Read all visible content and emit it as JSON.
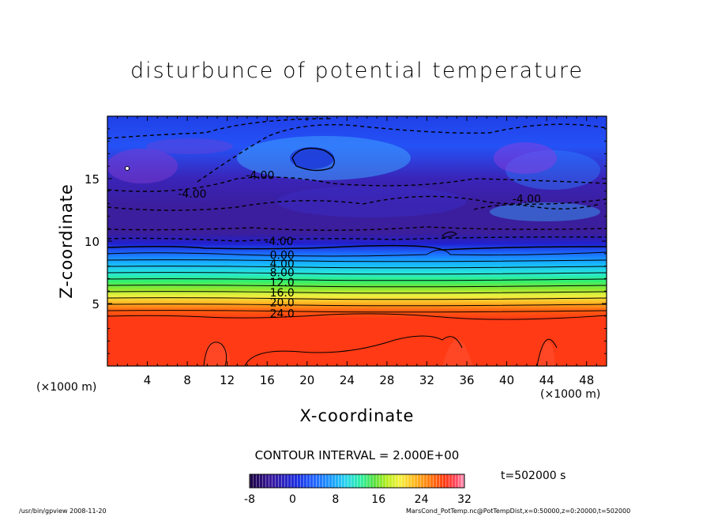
{
  "colors": {
    "background": "#ffffff",
    "ink": "#000000",
    "palette": [
      "#2b0060",
      "#3a1aa0",
      "#1e2fe0",
      "#2466ff",
      "#1c9cff",
      "#2ad6ee",
      "#30f0a0",
      "#58e040",
      "#b8ee20",
      "#f6f040",
      "#ffb820",
      "#ff7a10",
      "#ff3a14",
      "#ff4a60",
      "#ff8cb0"
    ]
  },
  "chart_data": {
    "type": "heatmap",
    "title": "disturbunce of potential temperature",
    "xlabel": "X-coordinate",
    "ylabel": "Z-coordinate",
    "x_unit": "(×1000 m)",
    "y_unit": "(×1000 m)",
    "xlim": [
      0,
      50
    ],
    "ylim": [
      0,
      20
    ],
    "x_ticks": [
      4,
      8,
      12,
      16,
      20,
      24,
      28,
      32,
      36,
      40,
      44,
      48
    ],
    "y_ticks": [
      5,
      10,
      15
    ],
    "contour_interval": "CONTOUR INTERVAL = 2.000E+00",
    "contour_labels": [
      {
        "text": "24.0",
        "x": 17.5,
        "z": 4.2
      },
      {
        "text": "20.0",
        "x": 17.5,
        "z": 5.1
      },
      {
        "text": "16.0",
        "x": 17.5,
        "z": 5.9
      },
      {
        "text": "12.0",
        "x": 17.5,
        "z": 6.7
      },
      {
        "text": "8.00",
        "x": 17.5,
        "z": 7.5
      },
      {
        "text": "4.00",
        "x": 17.5,
        "z": 8.2
      },
      {
        "text": "0.00",
        "x": 17.5,
        "z": 8.9
      },
      {
        "text": "-4.00",
        "x": 17.2,
        "z": 10.0
      },
      {
        "text": "-4.00",
        "x": 8.5,
        "z": 13.8
      },
      {
        "text": "-4.00",
        "x": 15.3,
        "z": 15.3
      },
      {
        "text": "-4.00",
        "x": 42.0,
        "z": 13.4
      }
    ],
    "colorbar": {
      "min": -8,
      "max": 32,
      "ticks": [
        -8,
        0,
        8,
        16,
        24,
        32
      ]
    },
    "time": "t=502000 s",
    "footer_left": "/usr/bin/gpview   2008-11-20",
    "footer_right": "MarsCond_PotTemp.nc@PotTempDist,x=0:50000,z=0:20000,t=502000"
  }
}
